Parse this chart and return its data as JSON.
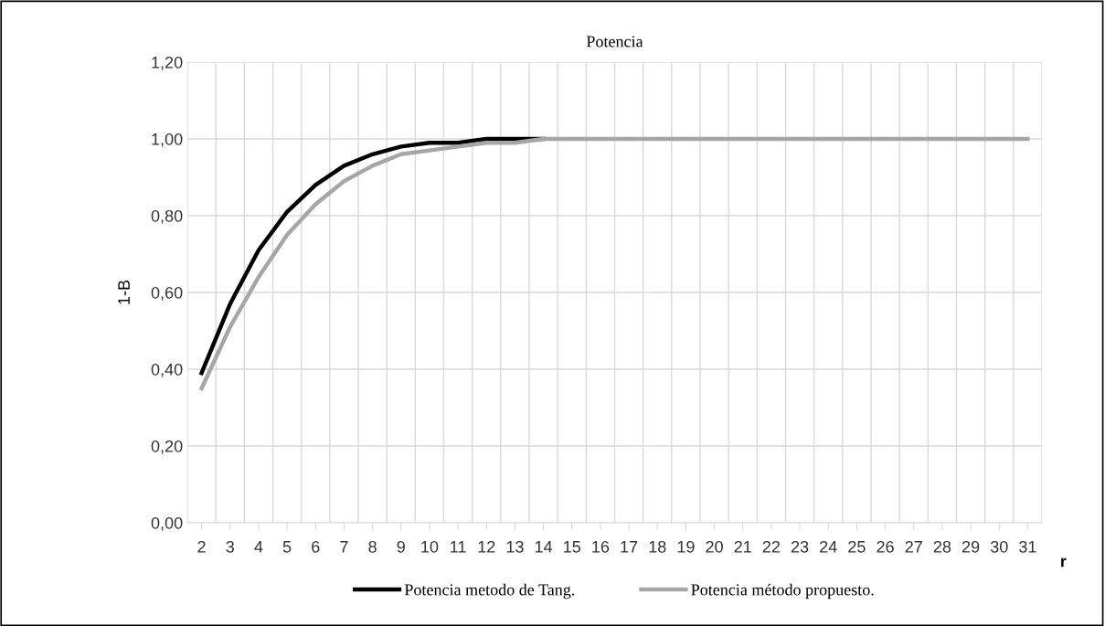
{
  "chart_data": {
    "type": "line",
    "title": "Potencia",
    "ylabel": "1-B",
    "xlabel": "r",
    "categories": [
      "2",
      "3",
      "4",
      "5",
      "6",
      "7",
      "8",
      "9",
      "10",
      "11",
      "12",
      "13",
      "14",
      "15",
      "16",
      "17",
      "18",
      "19",
      "20",
      "21",
      "22",
      "23",
      "24",
      "25",
      "26",
      "27",
      "28",
      "29",
      "30",
      "31"
    ],
    "series": [
      {
        "name": "Potencia metodo de Tang.",
        "color": "#000000",
        "values": [
          0.39,
          0.57,
          0.71,
          0.81,
          0.88,
          0.93,
          0.96,
          0.98,
          0.99,
          0.99,
          1.0,
          1.0,
          1.0,
          null,
          null,
          null,
          null,
          null,
          null,
          null,
          null,
          null,
          null,
          null,
          null,
          null,
          null,
          null,
          null,
          null
        ]
      },
      {
        "name": "Potencia método propuesto.",
        "color": "#a6a6a6",
        "values": [
          0.35,
          0.51,
          0.64,
          0.75,
          0.83,
          0.89,
          0.93,
          0.96,
          0.97,
          0.98,
          0.99,
          0.99,
          1.0,
          1.0,
          1.0,
          1.0,
          1.0,
          1.0,
          1.0,
          1.0,
          1.0,
          1.0,
          1.0,
          1.0,
          1.0,
          1.0,
          1.0,
          1.0,
          1.0,
          1.0
        ]
      }
    ],
    "ylim": [
      0,
      1.2
    ],
    "yticks": [
      {
        "value": 0,
        "label": "0,00"
      },
      {
        "value": 0.2,
        "label": "0,20"
      },
      {
        "value": 0.4,
        "label": "0,40"
      },
      {
        "value": 0.6,
        "label": "0,60"
      },
      {
        "value": 0.8,
        "label": "0,80"
      },
      {
        "value": 1.0,
        "label": "1,00"
      },
      {
        "value": 1.2,
        "label": "1,20"
      }
    ],
    "grid": true,
    "legend": "bottom",
    "marker": "none",
    "line_style": "solid"
  }
}
